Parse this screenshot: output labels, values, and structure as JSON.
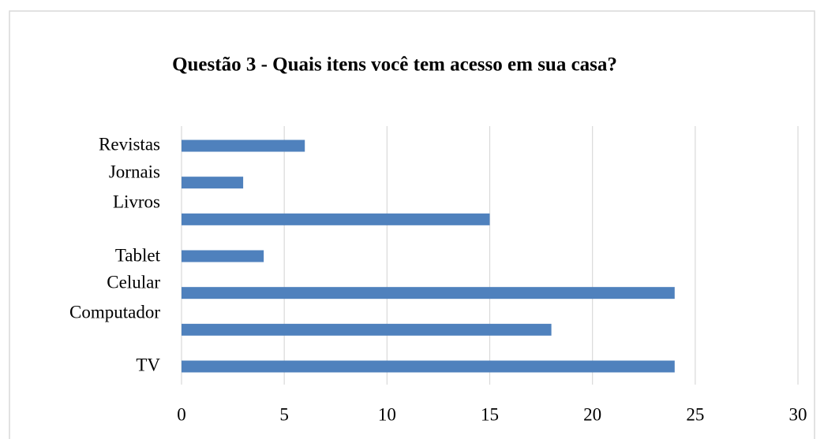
{
  "chart_data": {
    "type": "bar",
    "orientation": "horizontal",
    "title": "Questão 3 - Quais itens você tem acesso em sua casa?",
    "categories": [
      "Revistas",
      "Jornais",
      "Livros",
      "Tablet",
      "Celular",
      "Computador",
      "TV"
    ],
    "values": [
      6,
      3,
      15,
      4,
      24,
      18,
      24
    ],
    "color": "#4f81bd",
    "xlim": [
      0,
      30
    ],
    "xticks": [
      0,
      5,
      10,
      15,
      20,
      25,
      30
    ],
    "grid": true
  }
}
